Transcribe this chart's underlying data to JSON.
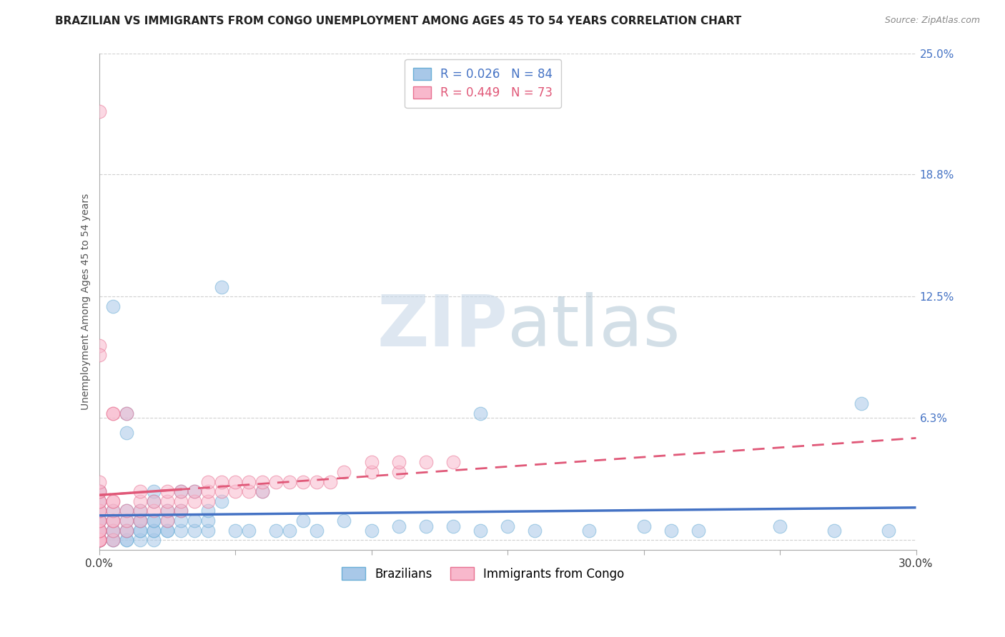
{
  "title": "BRAZILIAN VS IMMIGRANTS FROM CONGO UNEMPLOYMENT AMONG AGES 45 TO 54 YEARS CORRELATION CHART",
  "source": "Source: ZipAtlas.com",
  "ylabel": "Unemployment Among Ages 45 to 54 years",
  "watermark": "ZIPatlas",
  "xlim": [
    0.0,
    0.3
  ],
  "ylim": [
    -0.005,
    0.25
  ],
  "xticks": [
    0.0,
    0.05,
    0.1,
    0.15,
    0.2,
    0.25,
    0.3
  ],
  "xticklabels": [
    "0.0%",
    "",
    "",
    "",
    "",
    "",
    "30.0%"
  ],
  "yticks": [
    0.0,
    0.063,
    0.125,
    0.188,
    0.25
  ],
  "yticklabels": [
    "",
    "6.3%",
    "12.5%",
    "18.8%",
    "25.0%"
  ],
  "series1_label": "Brazilians",
  "series1_color": "#a8c8e8",
  "series1_edge_color": "#6aaed6",
  "series1_R": "R = 0.026",
  "series1_N": "N = 84",
  "series2_label": "Immigrants from Congo",
  "series2_color": "#f8b8cc",
  "series2_edge_color": "#e87090",
  "series2_R": "R = 0.449",
  "series2_N": "N = 73",
  "trend1_color": "#4472c4",
  "trend2_color": "#e05878",
  "background_color": "#ffffff",
  "grid_color": "#d0d0d0",
  "title_fontsize": 11,
  "axis_label_fontsize": 10,
  "tick_fontsize": 11,
  "marker_size": 180,
  "marker_alpha": 0.55,
  "series1_x": [
    0.0,
    0.0,
    0.0,
    0.0,
    0.0,
    0.0,
    0.0,
    0.0,
    0.0,
    0.0,
    0.0,
    0.0,
    0.0,
    0.0,
    0.0,
    0.0,
    0.005,
    0.005,
    0.005,
    0.005,
    0.005,
    0.005,
    0.01,
    0.01,
    0.01,
    0.01,
    0.01,
    0.01,
    0.015,
    0.015,
    0.015,
    0.015,
    0.015,
    0.015,
    0.02,
    0.02,
    0.02,
    0.02,
    0.02,
    0.02,
    0.025,
    0.025,
    0.025,
    0.025,
    0.03,
    0.03,
    0.03,
    0.035,
    0.035,
    0.04,
    0.04,
    0.04,
    0.045,
    0.05,
    0.055,
    0.06,
    0.065,
    0.07,
    0.075,
    0.08,
    0.09,
    0.1,
    0.11,
    0.12,
    0.13,
    0.14,
    0.15,
    0.16,
    0.18,
    0.2,
    0.21,
    0.22,
    0.25,
    0.27,
    0.29,
    0.28,
    0.045,
    0.005,
    0.035,
    0.01,
    0.14,
    0.03,
    0.02,
    0.01
  ],
  "series1_y": [
    0.0,
    0.0,
    0.0,
    0.0,
    0.0,
    0.0,
    0.0,
    0.0,
    0.005,
    0.005,
    0.005,
    0.01,
    0.01,
    0.015,
    0.02,
    0.025,
    0.0,
    0.0,
    0.005,
    0.005,
    0.01,
    0.015,
    0.0,
    0.0,
    0.005,
    0.005,
    0.01,
    0.015,
    0.0,
    0.005,
    0.005,
    0.01,
    0.01,
    0.015,
    0.0,
    0.005,
    0.005,
    0.01,
    0.01,
    0.02,
    0.005,
    0.005,
    0.01,
    0.015,
    0.005,
    0.01,
    0.015,
    0.005,
    0.01,
    0.005,
    0.01,
    0.015,
    0.02,
    0.005,
    0.005,
    0.025,
    0.005,
    0.005,
    0.01,
    0.005,
    0.01,
    0.005,
    0.007,
    0.007,
    0.007,
    0.005,
    0.007,
    0.005,
    0.005,
    0.007,
    0.005,
    0.005,
    0.007,
    0.005,
    0.005,
    0.07,
    0.13,
    0.12,
    0.025,
    0.055,
    0.065,
    0.025,
    0.025,
    0.065
  ],
  "series2_x": [
    0.0,
    0.0,
    0.0,
    0.0,
    0.0,
    0.0,
    0.0,
    0.0,
    0.0,
    0.0,
    0.0,
    0.0,
    0.0,
    0.0,
    0.0,
    0.0,
    0.0,
    0.0,
    0.0,
    0.005,
    0.005,
    0.005,
    0.005,
    0.005,
    0.005,
    0.005,
    0.01,
    0.01,
    0.01,
    0.015,
    0.015,
    0.015,
    0.015,
    0.02,
    0.02,
    0.025,
    0.025,
    0.025,
    0.025,
    0.03,
    0.03,
    0.03,
    0.035,
    0.035,
    0.04,
    0.04,
    0.04,
    0.045,
    0.045,
    0.05,
    0.05,
    0.055,
    0.055,
    0.06,
    0.06,
    0.065,
    0.07,
    0.075,
    0.08,
    0.085,
    0.09,
    0.1,
    0.1,
    0.11,
    0.11,
    0.12,
    0.13,
    0.0,
    0.0,
    0.0,
    0.005,
    0.005,
    0.01
  ],
  "series2_y": [
    0.0,
    0.0,
    0.0,
    0.0,
    0.0,
    0.0,
    0.0,
    0.005,
    0.005,
    0.005,
    0.01,
    0.01,
    0.015,
    0.015,
    0.02,
    0.02,
    0.025,
    0.025,
    0.03,
    0.0,
    0.005,
    0.01,
    0.01,
    0.015,
    0.02,
    0.02,
    0.005,
    0.01,
    0.015,
    0.01,
    0.015,
    0.02,
    0.025,
    0.015,
    0.02,
    0.01,
    0.015,
    0.02,
    0.025,
    0.015,
    0.02,
    0.025,
    0.02,
    0.025,
    0.02,
    0.025,
    0.03,
    0.025,
    0.03,
    0.025,
    0.03,
    0.025,
    0.03,
    0.025,
    0.03,
    0.03,
    0.03,
    0.03,
    0.03,
    0.03,
    0.035,
    0.035,
    0.04,
    0.035,
    0.04,
    0.04,
    0.04,
    0.22,
    0.1,
    0.095,
    0.065,
    0.065,
    0.065
  ]
}
